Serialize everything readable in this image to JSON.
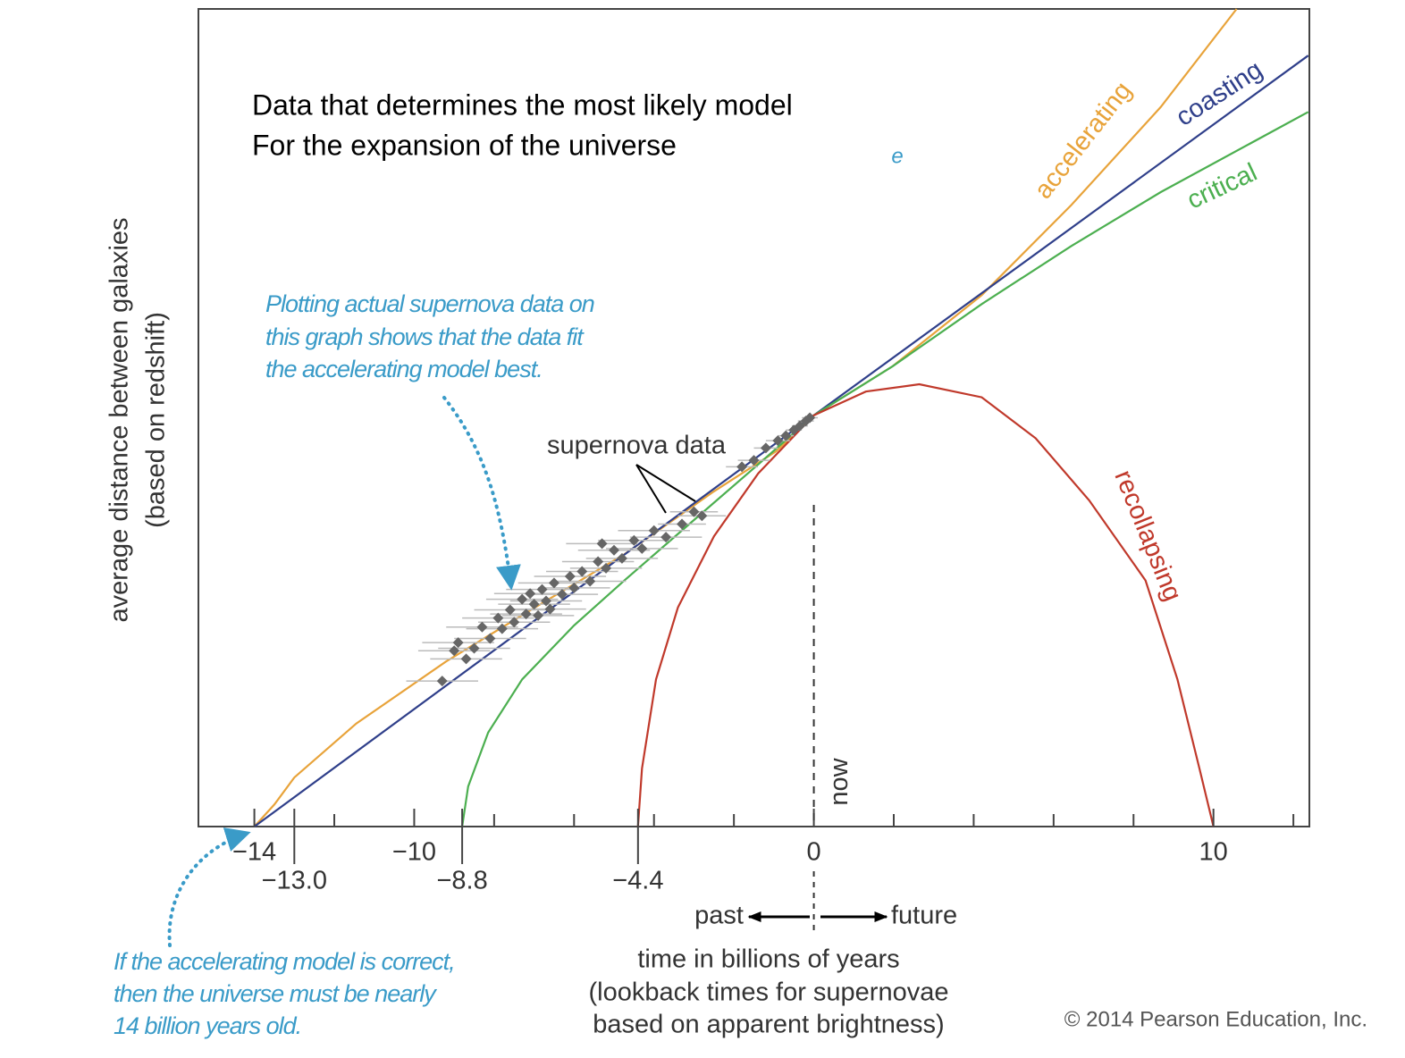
{
  "chart_data": {
    "type": "line",
    "title": [
      "Data that determines the most likely model",
      "For the expansion of the universe"
    ],
    "stray_mark": "e",
    "y_label": [
      "average distance between galaxies",
      "(based on redshift)"
    ],
    "x_label": [
      "time in billions of years",
      "(lookback times for supernovae",
      "based on apparent brightness)"
    ],
    "direction_labels": [
      "past",
      "future"
    ],
    "now": {
      "value": 0,
      "label": "now"
    },
    "xlim": [
      -15.4,
      12.4
    ],
    "ylim": [
      0,
      100
    ],
    "xticks": [
      {
        "value": -14,
        "label": "−14"
      },
      {
        "value": -10,
        "label": "−10"
      },
      0,
      10
    ],
    "xminorticks": [
      -12,
      -8,
      -6,
      -4,
      -2,
      2,
      4,
      6,
      8,
      12
    ],
    "age_markers": [
      {
        "value": -13.0,
        "label": "−13.0"
      },
      {
        "value": -8.8,
        "label": "−8.8"
      },
      {
        "value": -4.4,
        "label": "−4.4"
      }
    ],
    "series": [
      {
        "name": "accelerating",
        "color": "#e8a33a",
        "x": [
          -14,
          -13.5,
          -13,
          -11.45,
          -9.2,
          -6.98,
          -4.74,
          -2.5,
          -0.94,
          0,
          1.97,
          4.2,
          6.44,
          8.68,
          10.58
        ],
        "values": [
          0,
          2.7,
          6.0,
          12.6,
          20.2,
          26.8,
          33.3,
          41.0,
          45.9,
          50.3,
          56.3,
          65.0,
          76.0,
          88.0,
          100
        ]
      },
      {
        "name": "coasting",
        "color": "#2f3f8a",
        "x": [
          -14,
          0,
          12.37
        ],
        "values": [
          0,
          50.3,
          94.3
        ]
      },
      {
        "name": "critical",
        "color": "#4caf50",
        "x": [
          -8.8,
          -8.65,
          -8.15,
          -7.3,
          -6.0,
          -4.74,
          -2.95,
          -1.39,
          0,
          1.97,
          4.2,
          6.44,
          8.68,
          12.37
        ],
        "values": [
          0,
          4.9,
          11.5,
          18.0,
          24.6,
          30.1,
          37.7,
          44.3,
          50.3,
          56.3,
          63.9,
          71.0,
          77.6,
          87.4
        ]
      },
      {
        "name": "recollapsing",
        "color": "#c0392b",
        "x": [
          -4.4,
          -4.3,
          -3.95,
          -3.4,
          -2.5,
          -1.39,
          0,
          1.3,
          2.64,
          4.2,
          5.55,
          6.89,
          8.3,
          9.1,
          9.65,
          10
        ],
        "values": [
          0,
          7.1,
          18.0,
          26.8,
          35.5,
          43.2,
          50.3,
          53.2,
          54.1,
          52.5,
          47.5,
          39.9,
          30.1,
          18.0,
          7.1,
          0
        ]
      }
    ],
    "scatter": {
      "name": "supernova data",
      "color": "#666666",
      "error_color": "#bbbbbb",
      "x": [
        -9.3,
        -9.0,
        -8.9,
        -8.7,
        -8.5,
        -8.3,
        -8.1,
        -7.9,
        -7.8,
        -7.6,
        -7.5,
        -7.3,
        -7.2,
        -7.1,
        -7.0,
        -6.9,
        -6.8,
        -6.7,
        -6.6,
        -6.5,
        -6.3,
        -6.1,
        -6.0,
        -5.8,
        -5.6,
        -5.4,
        -5.3,
        -5.2,
        -5.0,
        -4.8,
        -4.5,
        -4.3,
        -4.0,
        -3.7,
        -3.3,
        -3.0,
        -2.8,
        -1.8,
        -1.5,
        -1.2,
        -0.9,
        -0.7,
        -0.5,
        -0.35,
        -0.2,
        -0.1
      ],
      "values": [
        17.8,
        21.5,
        22.5,
        20.5,
        21.8,
        24.4,
        23.0,
        25.5,
        24.2,
        26.5,
        25.0,
        27.8,
        26.0,
        28.5,
        27.2,
        25.8,
        29.0,
        27.6,
        26.6,
        29.8,
        28.4,
        30.6,
        29.2,
        31.2,
        30.0,
        32.4,
        34.6,
        31.6,
        33.8,
        32.8,
        35.0,
        34.0,
        36.2,
        35.4,
        37.0,
        38.5,
        38.0,
        44.0,
        44.8,
        46.3,
        47.2,
        47.8,
        48.5,
        49.0,
        49.6,
        50.0
      ],
      "x_errors": [
        0.9,
        0.9,
        0.9,
        0.9,
        0.9,
        0.9,
        0.9,
        0.9,
        0.9,
        0.9,
        0.9,
        0.9,
        0.9,
        0.9,
        0.9,
        0.9,
        0.9,
        0.9,
        0.9,
        0.9,
        0.9,
        0.9,
        0.9,
        0.9,
        0.9,
        0.9,
        0.9,
        0.9,
        0.9,
        0.9,
        0.9,
        0.9,
        0.9,
        0.9,
        0.6,
        0.6,
        0.6,
        0.4,
        0.4,
        0.3,
        0.3,
        0.2,
        0.2,
        0.2,
        0.2,
        0.2
      ]
    },
    "annotations": [
      [
        "Plotting actual supernova data on",
        "this graph shows that the data fit",
        "the accelerating model best."
      ],
      [
        "If the accelerating model is correct,",
        "then the universe must be nearly",
        "14 billion years old."
      ]
    ],
    "copyright": "© 2014 Pearson Education, Inc."
  }
}
